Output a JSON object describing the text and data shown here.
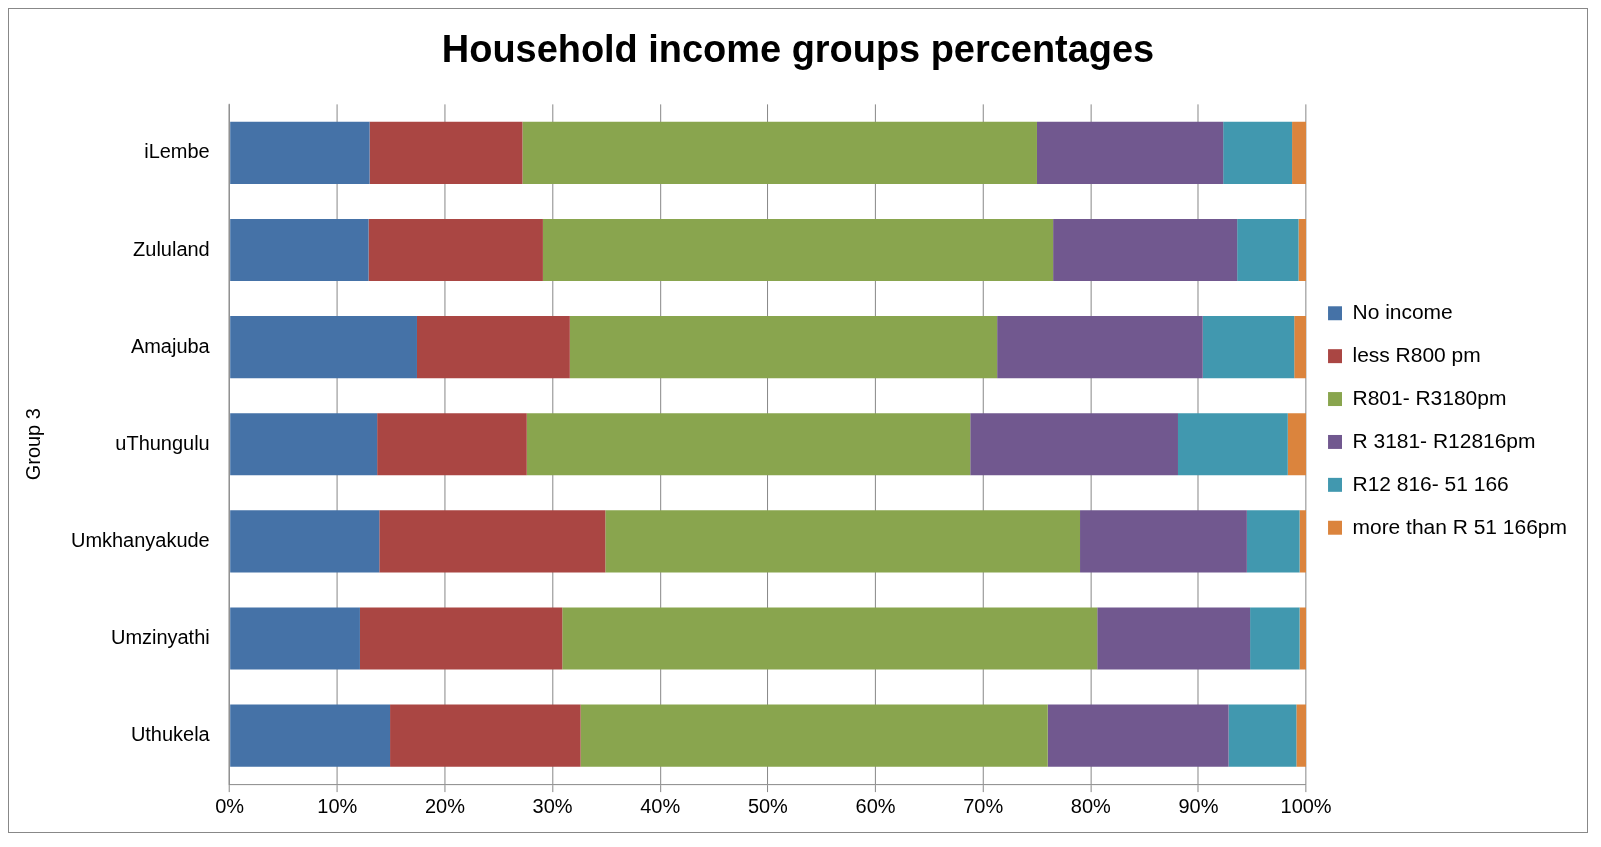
{
  "chart_data": {
    "type": "bar",
    "title": "Household income groups percentages",
    "ylabel": "Group 3",
    "orientation": "horizontal",
    "stacked": true,
    "grid": "x",
    "legend": "right",
    "categories": [
      "iLembe",
      "Zululand",
      "Amajuba",
      "uThungulu",
      "Umkhanyakude",
      "Umzinyathi",
      "Uthukela"
    ],
    "series": [
      {
        "name": "No income",
        "color": "#4572a7",
        "values": [
          13.0,
          12.9,
          17.4,
          13.7,
          13.9,
          12.1,
          14.9
        ]
      },
      {
        "name": "less R800 pm",
        "color": "#aa4643",
        "values": [
          14.2,
          16.2,
          14.2,
          13.9,
          21.0,
          18.8,
          17.7
        ]
      },
      {
        "name": "R801- R3180pm",
        "color": "#89a54e",
        "values": [
          47.8,
          47.4,
          39.7,
          41.2,
          44.1,
          49.7,
          43.4
        ]
      },
      {
        "name": "R 3181- R12816pm",
        "color": "#71588f",
        "values": [
          17.3,
          17.1,
          19.1,
          19.3,
          15.5,
          14.2,
          16.8
        ]
      },
      {
        "name": "R12 816- 51 166",
        "color": "#4198af",
        "values": [
          6.4,
          5.7,
          8.5,
          10.2,
          4.9,
          4.6,
          6.3
        ]
      },
      {
        "name": "more than R 51 166pm",
        "color": "#db843d",
        "values": [
          1.3,
          0.7,
          1.1,
          1.7,
          0.6,
          0.6,
          0.9
        ]
      }
    ],
    "xlim": [
      0,
      100
    ],
    "xticks": [
      {
        "value": 0,
        "label": "0%"
      },
      {
        "value": 10,
        "label": "10%"
      },
      {
        "value": 20,
        "label": "20%"
      },
      {
        "value": 30,
        "label": "30%"
      },
      {
        "value": 40,
        "label": "40%"
      },
      {
        "value": 50,
        "label": "50%"
      },
      {
        "value": 60,
        "label": "60%"
      },
      {
        "value": 70,
        "label": "70%"
      },
      {
        "value": 80,
        "label": "80%"
      },
      {
        "value": 90,
        "label": "90%"
      },
      {
        "value": 100,
        "label": "100%"
      }
    ]
  }
}
